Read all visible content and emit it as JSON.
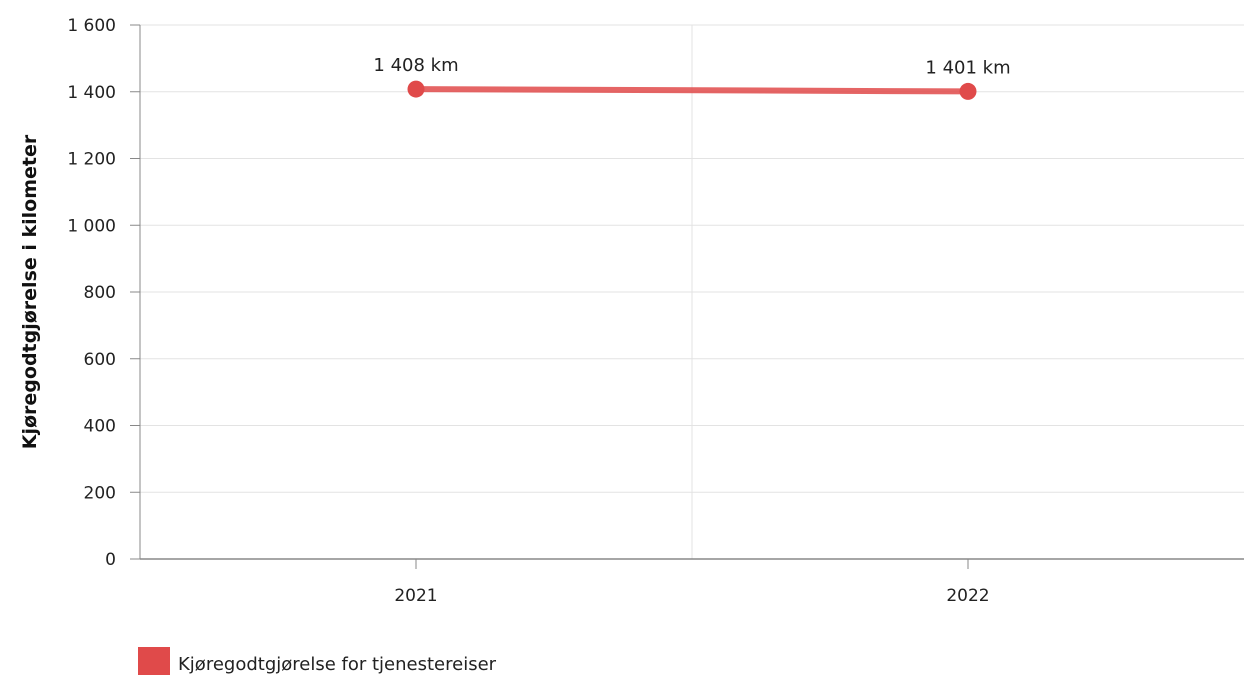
{
  "chart_data": {
    "type": "line",
    "categories": [
      "2021",
      "2022"
    ],
    "series": [
      {
        "name": "Kjøregodtgjørelse for tjenestereiser",
        "values": [
          1408,
          1401
        ],
        "data_labels": [
          "1 408 km",
          "1 401 km"
        ],
        "color": "#e04a4a"
      }
    ],
    "title": "",
    "xlabel": "",
    "ylabel": "Kjøregodtgjørelse i kilometer",
    "ylim": [
      0,
      1600
    ],
    "yticks": [
      0,
      200,
      400,
      600,
      800,
      1000,
      1200,
      1400,
      1600
    ],
    "ytick_labels": [
      "0",
      "200",
      "400",
      "600",
      "800",
      "1 000",
      "1 200",
      "1 400",
      "1 600"
    ],
    "grid": true,
    "legend_position": "bottom-left"
  }
}
